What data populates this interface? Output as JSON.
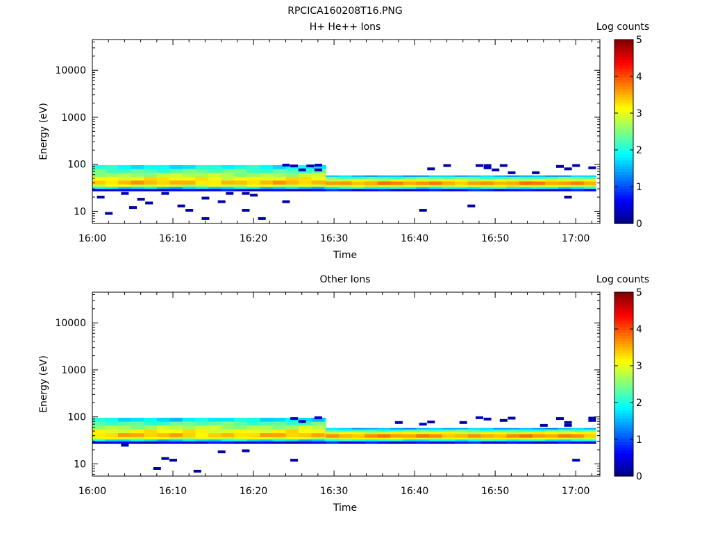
{
  "figure_title": "RPCICA160208T16.PNG",
  "chart_data": [
    {
      "type": "heatmap",
      "title": "H+ He++ Ions",
      "xlabel": "Time",
      "ylabel": "Energy (eV)",
      "y_scale": "log",
      "ylim": [
        5.5,
        45000
      ],
      "xlim": [
        "16:00",
        "17:03"
      ],
      "x_ticks": [
        "16:00",
        "16:10",
        "16:20",
        "16:30",
        "16:40",
        "16:50",
        "17:00"
      ],
      "y_ticks": [
        "10",
        "100",
        "1000",
        "10000"
      ],
      "colorbar": {
        "label": "Log counts",
        "range": [
          0,
          5
        ],
        "ticks": [
          "0",
          "1",
          "2",
          "3",
          "4",
          "5"
        ],
        "colormap": "jet"
      },
      "segments": [
        {
          "x_start": "16:00",
          "x_end": "16:29",
          "bands": [
            {
              "e_low": 79,
              "e_high": 96,
              "log_counts": 1.9
            },
            {
              "e_low": 66,
              "e_high": 79,
              "log_counts": 2.3
            },
            {
              "e_low": 54,
              "e_high": 66,
              "log_counts": 2.7
            },
            {
              "e_low": 45,
              "e_high": 54,
              "log_counts": 3.1
            },
            {
              "e_low": 37,
              "e_high": 45,
              "log_counts": 3.4
            },
            {
              "e_low": 33,
              "e_high": 37,
              "log_counts": 2.9
            },
            {
              "e_low": 30,
              "e_high": 33,
              "log_counts": 1.7
            },
            {
              "e_low": 27,
              "e_high": 30,
              "log_counts": 0.5
            }
          ]
        },
        {
          "x_start": "16:29",
          "x_end": "17:02.5",
          "bands": [
            {
              "e_low": 54,
              "e_high": 58,
              "log_counts": 1.5
            },
            {
              "e_low": 49,
              "e_high": 54,
              "log_counts": 2.2
            },
            {
              "e_low": 43,
              "e_high": 49,
              "log_counts": 3.0
            },
            {
              "e_low": 36,
              "e_high": 43,
              "log_counts": 3.6
            },
            {
              "e_low": 33,
              "e_high": 36,
              "log_counts": 3.0
            },
            {
              "e_low": 30,
              "e_high": 33,
              "log_counts": 1.9
            },
            {
              "e_low": 27,
              "e_high": 30,
              "log_counts": 0.6
            }
          ]
        }
      ],
      "sparse_points": [
        {
          "t": "16:01",
          "e": 20,
          "log_counts": 0.2
        },
        {
          "t": "16:02",
          "e": 9,
          "log_counts": 0.2
        },
        {
          "t": "16:04",
          "e": 24,
          "log_counts": 0.3
        },
        {
          "t": "16:05",
          "e": 12,
          "log_counts": 0.2
        },
        {
          "t": "16:06",
          "e": 18,
          "log_counts": 0.2
        },
        {
          "t": "16:07",
          "e": 15,
          "log_counts": 0.2
        },
        {
          "t": "16:09",
          "e": 24,
          "log_counts": 0.3
        },
        {
          "t": "16:11",
          "e": 13,
          "log_counts": 0.2
        },
        {
          "t": "16:12",
          "e": 10.5,
          "log_counts": 0.2
        },
        {
          "t": "16:14",
          "e": 7,
          "log_counts": 0.2
        },
        {
          "t": "16:14",
          "e": 19,
          "log_counts": 0.2
        },
        {
          "t": "16:16",
          "e": 16,
          "log_counts": 0.2
        },
        {
          "t": "16:17",
          "e": 24,
          "log_counts": 0.2
        },
        {
          "t": "16:19",
          "e": 24,
          "log_counts": 0.2
        },
        {
          "t": "16:19",
          "e": 10.5,
          "log_counts": 0.2
        },
        {
          "t": "16:20",
          "e": 22,
          "log_counts": 0.2
        },
        {
          "t": "16:21",
          "e": 7,
          "log_counts": 0.2
        },
        {
          "t": "16:24",
          "e": 16,
          "log_counts": 0.2
        },
        {
          "t": "16:24",
          "e": 96,
          "log_counts": 0.3
        },
        {
          "t": "16:25",
          "e": 92,
          "log_counts": 0.3
        },
        {
          "t": "16:26",
          "e": 76,
          "log_counts": 0.2
        },
        {
          "t": "16:27",
          "e": 92,
          "log_counts": 0.2
        },
        {
          "t": "16:28",
          "e": 96,
          "log_counts": 0.4
        },
        {
          "t": "16:28",
          "e": 76,
          "log_counts": 0.2
        },
        {
          "t": "16:41",
          "e": 10.5,
          "log_counts": 0.2
        },
        {
          "t": "16:42",
          "e": 80,
          "log_counts": 0.2
        },
        {
          "t": "16:44",
          "e": 94,
          "log_counts": 0.2
        },
        {
          "t": "16:47",
          "e": 13,
          "log_counts": 0.2
        },
        {
          "t": "16:48",
          "e": 94,
          "log_counts": 0.2
        },
        {
          "t": "16:49",
          "e": 94,
          "log_counts": 0.3
        },
        {
          "t": "16:49",
          "e": 84,
          "log_counts": 0.2
        },
        {
          "t": "16:50",
          "e": 76,
          "log_counts": 0.2
        },
        {
          "t": "16:51",
          "e": 94,
          "log_counts": 0.2
        },
        {
          "t": "16:52",
          "e": 66,
          "log_counts": 0.2
        },
        {
          "t": "16:55",
          "e": 66,
          "log_counts": 0.2
        },
        {
          "t": "16:58",
          "e": 90,
          "log_counts": 0.2
        },
        {
          "t": "16:59",
          "e": 80,
          "log_counts": 0.2
        },
        {
          "t": "16:59",
          "e": 20,
          "log_counts": 0.2
        },
        {
          "t": "17:00",
          "e": 94,
          "log_counts": 0.2
        },
        {
          "t": "17:02",
          "e": 84,
          "log_counts": 0.2
        }
      ]
    },
    {
      "type": "heatmap",
      "title": "Other Ions",
      "xlabel": "Time",
      "ylabel": "Energy (eV)",
      "y_scale": "log",
      "ylim": [
        5.5,
        45000
      ],
      "xlim": [
        "16:00",
        "17:03"
      ],
      "x_ticks": [
        "16:00",
        "16:10",
        "16:20",
        "16:30",
        "16:40",
        "16:50",
        "17:00"
      ],
      "y_ticks": [
        "10",
        "100",
        "1000",
        "10000"
      ],
      "colorbar": {
        "label": "Log counts",
        "range": [
          0,
          5
        ],
        "ticks": [
          "0",
          "1",
          "2",
          "3",
          "4",
          "5"
        ],
        "colormap": "jet"
      },
      "segments": [
        {
          "x_start": "16:00",
          "x_end": "16:29",
          "bands": [
            {
              "e_low": 79,
              "e_high": 96,
              "log_counts": 1.8
            },
            {
              "e_low": 66,
              "e_high": 79,
              "log_counts": 2.3
            },
            {
              "e_low": 54,
              "e_high": 66,
              "log_counts": 2.7
            },
            {
              "e_low": 45,
              "e_high": 54,
              "log_counts": 3.1
            },
            {
              "e_low": 37,
              "e_high": 45,
              "log_counts": 3.4
            },
            {
              "e_low": 33,
              "e_high": 37,
              "log_counts": 2.9
            },
            {
              "e_low": 30,
              "e_high": 33,
              "log_counts": 1.7
            },
            {
              "e_low": 27,
              "e_high": 30,
              "log_counts": 0.5
            }
          ]
        },
        {
          "x_start": "16:29",
          "x_end": "17:02.5",
          "bands": [
            {
              "e_low": 54,
              "e_high": 58,
              "log_counts": 1.5
            },
            {
              "e_low": 49,
              "e_high": 54,
              "log_counts": 2.2
            },
            {
              "e_low": 43,
              "e_high": 49,
              "log_counts": 3.0
            },
            {
              "e_low": 36,
              "e_high": 43,
              "log_counts": 3.6
            },
            {
              "e_low": 33,
              "e_high": 36,
              "log_counts": 3.0
            },
            {
              "e_low": 30,
              "e_high": 33,
              "log_counts": 1.9
            },
            {
              "e_low": 27,
              "e_high": 30,
              "log_counts": 0.6
            }
          ]
        }
      ],
      "sparse_points": [
        {
          "t": "16:04",
          "e": 25,
          "log_counts": 0.3
        },
        {
          "t": "16:08",
          "e": 8,
          "log_counts": 0.2
        },
        {
          "t": "16:09",
          "e": 13,
          "log_counts": 0.2
        },
        {
          "t": "16:10",
          "e": 12,
          "log_counts": 0.2
        },
        {
          "t": "16:13",
          "e": 7,
          "log_counts": 0.2
        },
        {
          "t": "16:16",
          "e": 18,
          "log_counts": 0.2
        },
        {
          "t": "16:19",
          "e": 19,
          "log_counts": 0.2
        },
        {
          "t": "16:25",
          "e": 12,
          "log_counts": 0.2
        },
        {
          "t": "16:25",
          "e": 92,
          "log_counts": 0.3
        },
        {
          "t": "16:26",
          "e": 80,
          "log_counts": 0.2
        },
        {
          "t": "16:28",
          "e": 96,
          "log_counts": 0.4
        },
        {
          "t": "16:38",
          "e": 76,
          "log_counts": 0.3
        },
        {
          "t": "16:41",
          "e": 70,
          "log_counts": 0.3
        },
        {
          "t": "16:42",
          "e": 78,
          "log_counts": 0.3
        },
        {
          "t": "16:46",
          "e": 76,
          "log_counts": 0.2
        },
        {
          "t": "16:48",
          "e": 96,
          "log_counts": 0.4
        },
        {
          "t": "16:49",
          "e": 90,
          "log_counts": 0.4
        },
        {
          "t": "16:51",
          "e": 84,
          "log_counts": 0.2
        },
        {
          "t": "16:52",
          "e": 94,
          "log_counts": 0.2
        },
        {
          "t": "16:56",
          "e": 66,
          "log_counts": 0.2
        },
        {
          "t": "16:58",
          "e": 92,
          "log_counts": 0.2
        },
        {
          "t": "16:59",
          "e": 76,
          "log_counts": 0.2
        },
        {
          "t": "16:59",
          "e": 66,
          "log_counts": 0.2
        },
        {
          "t": "17:00",
          "e": 12,
          "log_counts": 0.2
        },
        {
          "t": "17:02",
          "e": 94,
          "log_counts": 0.2
        },
        {
          "t": "17:02",
          "e": 84,
          "log_counts": 0.2
        }
      ]
    }
  ]
}
